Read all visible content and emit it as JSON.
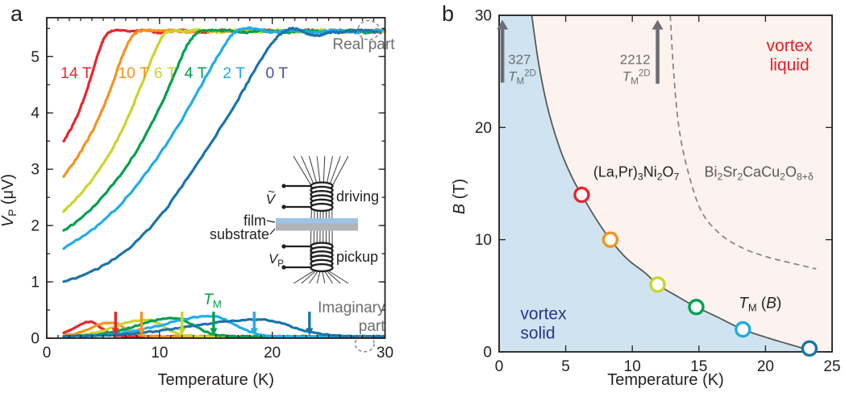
{
  "figure": {
    "panel_letters": {
      "a": "a",
      "b": "b"
    },
    "background": "#ffffff",
    "frame_color": "#231f20"
  },
  "chart_data": [
    {
      "type": "line",
      "panel": "a",
      "xlabel": "Temperature (K)",
      "ylabel_rich": [
        {
          "t": "V",
          "s": "i"
        },
        {
          "t": "P",
          "s": "sub"
        },
        {
          "t": " (μV)"
        }
      ],
      "xlim": [
        0,
        30
      ],
      "ylim": [
        0,
        5.69
      ],
      "x_ticks": [
        0,
        10,
        20,
        30
      ],
      "x_minor_step": 1,
      "y_ticks": [
        0,
        1,
        2,
        3,
        4,
        5
      ],
      "y_minor_step": 0.5,
      "plateau": 5.45,
      "series": [
        {
          "name": "14 T",
          "color": "#e8262d",
          "label_color": "#e8262d",
          "label_T": 2.6,
          "tm_arrow_T": 6.1,
          "real": [
            [
              1.5,
              3.5
            ],
            [
              2.3,
              3.78
            ],
            [
              3.1,
              4.15
            ],
            [
              3.9,
              4.62
            ],
            [
              4.6,
              5.08
            ],
            [
              5.2,
              5.36
            ],
            [
              5.8,
              5.455
            ],
            [
              6.6,
              5.465
            ]
          ],
          "imag": {
            "center": 3.8,
            "height": 0.26,
            "sigma_left": 1.3,
            "sigma_right": 1.0
          }
        },
        {
          "name": "10 T",
          "color": "#f6921e",
          "label_color": "#f6921e",
          "label_T": 7.7,
          "tm_arrow_T": 8.4,
          "real": [
            [
              1.5,
              2.88
            ],
            [
              2.8,
              3.24
            ],
            [
              4.2,
              3.74
            ],
            [
              5.5,
              4.34
            ],
            [
              6.6,
              4.95
            ],
            [
              7.4,
              5.3
            ],
            [
              8.1,
              5.44
            ],
            [
              9.0,
              5.465
            ]
          ],
          "imag": {
            "center": 5.7,
            "height": 0.25,
            "sigma_left": 1.8,
            "sigma_right": 1.2
          }
        },
        {
          "name": "6 T",
          "color": "#c9d52b",
          "label_color": "#c9d52b",
          "label_T": 10.5,
          "tm_arrow_T": 12.0,
          "real": [
            [
              1.5,
              2.25
            ],
            [
              3.0,
              2.57
            ],
            [
              4.8,
              3.03
            ],
            [
              6.6,
              3.66
            ],
            [
              8.2,
              4.4
            ],
            [
              9.4,
              5.0
            ],
            [
              10.3,
              5.37
            ],
            [
              11.2,
              5.46
            ]
          ],
          "imag": {
            "center": 8.8,
            "height": 0.3,
            "sigma_left": 2.6,
            "sigma_right": 1.5
          }
        },
        {
          "name": "4 T",
          "color": "#00a04e",
          "label_color": "#00a04e",
          "label_T": 13.2,
          "tm_arrow_T": 14.8,
          "real": [
            [
              1.5,
              1.9
            ],
            [
              3.5,
              2.21
            ],
            [
              5.5,
              2.64
            ],
            [
              7.5,
              3.18
            ],
            [
              9.5,
              3.88
            ],
            [
              11.2,
              4.62
            ],
            [
              12.4,
              5.18
            ],
            [
              13.4,
              5.43
            ],
            [
              14.2,
              5.46
            ]
          ],
          "imag": {
            "center": 11.3,
            "height": 0.33,
            "sigma_left": 3.2,
            "sigma_right": 1.7
          }
        },
        {
          "name": "2 T",
          "color": "#1fade8",
          "label_color": "#1fade8",
          "label_T": 16.6,
          "tm_arrow_T": 18.4,
          "real": [
            [
              1.5,
              1.6
            ],
            [
              4.0,
              1.92
            ],
            [
              6.5,
              2.37
            ],
            [
              9.0,
              2.98
            ],
            [
              11.5,
              3.72
            ],
            [
              13.5,
              4.42
            ],
            [
              15.2,
              5.02
            ],
            [
              16.4,
              5.38
            ],
            [
              17.4,
              5.49
            ],
            [
              18.4,
              5.5
            ],
            [
              19.2,
              5.46
            ]
          ],
          "imag": {
            "center": 14.6,
            "height": 0.36,
            "sigma_left": 4.2,
            "sigma_right": 2.0
          }
        },
        {
          "name": "0 T",
          "color": "#1b74a9",
          "label_color": "#4a52a5",
          "label_T": 20.4,
          "tm_arrow_T": 23.3,
          "real": [
            [
              1.5,
              1.0
            ],
            [
              4.0,
              1.18
            ],
            [
              7.0,
              1.55
            ],
            [
              10.0,
              2.15
            ],
            [
              12.5,
              2.85
            ],
            [
              15.0,
              3.6
            ],
            [
              17.0,
              4.25
            ],
            [
              18.7,
              4.85
            ],
            [
              20.0,
              5.24
            ],
            [
              21.0,
              5.44
            ],
            [
              21.9,
              5.5
            ],
            [
              23.0,
              5.42
            ],
            [
              24.0,
              5.37
            ],
            [
              25.0,
              5.43
            ]
          ],
          "imag": {
            "center": 18.8,
            "height": 0.3,
            "sigma_left": 6.0,
            "sigma_right": 2.8
          }
        }
      ],
      "field_label_V": 4.62,
      "imag_base": 0.03,
      "annotations": {
        "real_part": {
          "text": "Real part",
          "color": "#6d6e71",
          "T": 28.1,
          "V": 5.13
        },
        "imaginary_part_line1": {
          "text": "Imaginary",
          "color": "#6d6e71",
          "T": 30.0,
          "V": 0.46
        },
        "imaginary_part_line2": {
          "text": "part",
          "color": "#6d6e71",
          "T": 30.0,
          "V": 0.13
        },
        "tm_label": {
          "rich": [
            {
              "t": "T",
              "s": "i"
            },
            {
              "t": "M",
              "s": "sub"
            }
          ],
          "color": "#00a04e",
          "T": 14.7,
          "V": 0.6
        },
        "real_ellipse": {
          "T": 28.55,
          "V": 5.47,
          "rxK": 0.95,
          "ryV": 0.17,
          "color": "#808285"
        },
        "imag_ellipse": {
          "T": 28.2,
          "V": -0.1,
          "rxK": 0.85,
          "ryV": 0.14,
          "color": "#808285"
        }
      },
      "inset": {
        "driving_label": "driving",
        "pickup_label": "pickup",
        "film_label": "film",
        "substrate_label": "substrate",
        "v_drive_rich": [
          {
            "t": "V",
            "s": "i"
          }
        ],
        "v_drive_tilde": "~",
        "v_pickup_rich": [
          {
            "t": "V",
            "s": "i"
          },
          {
            "t": "P",
            "s": "sub"
          }
        ],
        "film_color": "#9dc3e6",
        "substrate_color": "#b1b3b6",
        "coil_color": "#231f20",
        "text_color": "#231f20"
      }
    },
    {
      "type": "scatter",
      "panel": "b",
      "xlabel": "Temperature (K)",
      "ylabel_rich": [
        {
          "t": "B",
          "s": "i"
        },
        {
          "t": " (T)"
        }
      ],
      "xlim": [
        0,
        25
      ],
      "ylim": [
        0,
        30
      ],
      "x_ticks": [
        0,
        5,
        10,
        15,
        20,
        25
      ],
      "y_ticks": [
        0,
        10,
        20,
        30
      ],
      "vortex_solid_fill": "#cfe4f0",
      "vortex_liquid_fill": "#fcf3ee",
      "melting_line_color": "#58595b",
      "dashed_line_color": "#808285",
      "melting_line": [
        [
          2.45,
          30
        ],
        [
          3.0,
          25.5
        ],
        [
          3.7,
          21.5
        ],
        [
          4.6,
          18
        ],
        [
          5.5,
          15.5
        ],
        [
          6.2,
          14
        ],
        [
          7.2,
          12
        ],
        [
          8.35,
          10
        ],
        [
          9.6,
          8.3
        ],
        [
          11.0,
          7.0
        ],
        [
          11.9,
          6.0
        ],
        [
          13.3,
          5.0
        ],
        [
          14.8,
          4.0
        ],
        [
          16.4,
          3.1
        ],
        [
          18.3,
          2.0
        ],
        [
          20.3,
          1.2
        ],
        [
          22.0,
          0.6
        ],
        [
          23.6,
          0.05
        ]
      ],
      "dashed_line": [
        [
          12.85,
          30
        ],
        [
          13.1,
          25
        ],
        [
          13.5,
          20
        ],
        [
          14.2,
          16
        ],
        [
          15.2,
          12.5
        ],
        [
          16.6,
          10.5
        ],
        [
          18.2,
          9.3
        ],
        [
          20.0,
          8.5
        ],
        [
          22.0,
          7.9
        ],
        [
          23.8,
          7.4
        ]
      ],
      "points": [
        {
          "T": 6.2,
          "B": 14.0,
          "color": "#e8262d"
        },
        {
          "T": 8.35,
          "B": 10.0,
          "color": "#f6921e"
        },
        {
          "T": 11.9,
          "B": 6.0,
          "color": "#c9d52b"
        },
        {
          "T": 14.8,
          "B": 4.0,
          "color": "#00a04e"
        },
        {
          "T": 18.3,
          "B": 2.0,
          "color": "#1fade8"
        },
        {
          "T": 23.3,
          "B": 0.3,
          "color": "#1b74a9"
        }
      ],
      "annotations": {
        "vortex_liquid": {
          "lines": [
            "vortex",
            "liquid"
          ],
          "color": "#ed1c24",
          "T": 21.8,
          "B_lines": [
            26.8,
            25.1
          ]
        },
        "vortex_solid": {
          "lines": [
            "vortex",
            "solid"
          ],
          "color": "#2e3192",
          "T": 1.6,
          "B_lines": [
            2.9,
            1.2
          ]
        },
        "sample_label": {
          "rich": [
            {
              "t": "(La,Pr)"
            },
            {
              "t": "3",
              "s": "sub"
            },
            {
              "t": "Ni"
            },
            {
              "t": "2",
              "s": "sub"
            },
            {
              "t": "O"
            },
            {
              "t": "7",
              "s": "sub"
            }
          ],
          "color": "#231f20",
          "T": 10.3,
          "B": 15.6
        },
        "bscco_label": {
          "rich": [
            {
              "t": "Bi"
            },
            {
              "t": "2",
              "s": "sub"
            },
            {
              "t": "Sr"
            },
            {
              "t": "2",
              "s": "sub"
            },
            {
              "t": "CaCu"
            },
            {
              "t": "2",
              "s": "sub"
            },
            {
              "t": "O"
            },
            {
              "t": "8+δ",
              "s": "sub"
            }
          ],
          "color": "#58595b",
          "T": 19.5,
          "B": 15.6
        },
        "tm_b_label": {
          "rich": [
            {
              "t": "T",
              "s": "i"
            },
            {
              "t": "M",
              "s": "sub"
            },
            {
              "t": " ("
            },
            {
              "t": "B",
              "s": "i"
            },
            {
              "t": ")"
            }
          ],
          "color": "#231f20",
          "T": 19.6,
          "B": 3.9
        },
        "arrow_327": {
          "lines_rich": [
            [
              {
                "t": "327"
              }
            ],
            [
              {
                "t": "T",
                "s": "i"
              },
              {
                "t": "M",
                "s": "sub"
              },
              {
                "t": "2D",
                "s": "sup"
              }
            ]
          ],
          "color": "#6d6e71",
          "arrow_T": 0.25,
          "B_from": 24.0,
          "B_to": 29.6,
          "label_side": "right"
        },
        "arrow_2212": {
          "lines_rich": [
            [
              {
                "t": "2212"
              }
            ],
            [
              {
                "t": "T",
                "s": "i"
              },
              {
                "t": "M",
                "s": "sub"
              },
              {
                "t": "2D",
                "s": "sup"
              }
            ]
          ],
          "color": "#6d6e71",
          "arrow_T": 11.9,
          "B_from": 23.9,
          "B_to": 29.6,
          "label_side": "left"
        }
      }
    }
  ]
}
